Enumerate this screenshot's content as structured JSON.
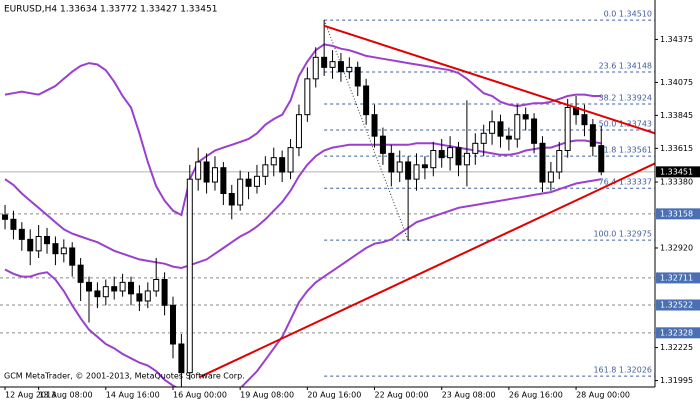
{
  "chart_data": {
    "type": "candlestick",
    "title": "EURUSD,H4 1.33634 1.33772 1.33427 1.33451",
    "footer": "GCM MetaTrader, © 2001-2013, MetaQuotes Software Corp.",
    "bull_color": "#ffffff",
    "bear_color": "#000000",
    "open": [
      1.3315,
      1.3312,
      1.3305,
      1.3298,
      1.329,
      1.33,
      1.3295,
      1.3288,
      1.3292,
      1.328,
      1.3268,
      1.3262,
      1.3258,
      1.3265,
      1.3262,
      1.3268,
      1.326,
      1.3255,
      1.3262,
      1.327,
      1.3252,
      1.3225,
      1.3205,
      1.334,
      1.3352,
      1.3338,
      1.3348,
      1.333,
      1.3322,
      1.334,
      1.3335,
      1.3342,
      1.335,
      1.3355,
      1.3345,
      1.3362,
      1.3385,
      1.341,
      1.3425,
      1.3418,
      1.3422,
      1.3415,
      1.3418,
      1.3405,
      1.3385,
      1.337,
      1.3358,
      1.3345,
      1.3352,
      1.334,
      1.335,
      1.3348,
      1.336,
      1.3355,
      1.3362,
      1.335,
      1.3358,
      1.3365,
      1.3372,
      1.338,
      1.337,
      1.3368,
      1.3385,
      1.3382,
      1.3365,
      1.3338,
      1.3345,
      1.336,
      1.339,
      1.3385,
      1.3378,
      1.33634
    ],
    "high": [
      1.3322,
      1.3318,
      1.331,
      1.3305,
      1.3308,
      1.3306,
      1.33,
      1.3298,
      1.3296,
      1.3285,
      1.3272,
      1.3268,
      1.327,
      1.3272,
      1.3274,
      1.3272,
      1.3266,
      1.3268,
      1.3285,
      1.3275,
      1.3258,
      1.3232,
      1.335,
      1.3362,
      1.3358,
      1.3356,
      1.3352,
      1.3336,
      1.3346,
      1.3345,
      1.335,
      1.3356,
      1.3362,
      1.336,
      1.3368,
      1.3392,
      1.3418,
      1.3432,
      1.3451,
      1.343,
      1.3428,
      1.3425,
      1.3422,
      1.341,
      1.3392,
      1.3376,
      1.3364,
      1.336,
      1.3356,
      1.3358,
      1.3356,
      1.3366,
      1.3368,
      1.337,
      1.3366,
      1.3395,
      1.3372,
      1.3378,
      1.3388,
      1.3385,
      1.3376,
      1.3392,
      1.339,
      1.3386,
      1.337,
      1.3352,
      1.3366,
      1.3396,
      1.3398,
      1.3392,
      1.3382,
      1.33772
    ],
    "low": [
      1.3305,
      1.3298,
      1.329,
      1.328,
      1.3285,
      1.3288,
      1.328,
      1.3282,
      1.3272,
      1.3255,
      1.324,
      1.325,
      1.3252,
      1.3256,
      1.3258,
      1.3252,
      1.3248,
      1.325,
      1.3258,
      1.3245,
      1.3215,
      1.319,
      1.32,
      1.3332,
      1.333,
      1.3332,
      1.3322,
      1.3312,
      1.3318,
      1.3326,
      1.333,
      1.3336,
      1.3342,
      1.3338,
      1.334,
      1.3356,
      1.338,
      1.3404,
      1.3412,
      1.341,
      1.3408,
      1.341,
      1.3398,
      1.3378,
      1.3362,
      1.335,
      1.3335,
      1.3338,
      1.3297,
      1.3332,
      1.334,
      1.3342,
      1.3348,
      1.3346,
      1.3342,
      1.3335,
      1.335,
      1.3356,
      1.3364,
      1.3362,
      1.336,
      1.3362,
      1.3374,
      1.3358,
      1.3331,
      1.3332,
      1.334,
      1.3355,
      1.3378,
      1.337,
      1.3356,
      1.33427
    ],
    "close": [
      1.3312,
      1.3305,
      1.3298,
      1.329,
      1.33,
      1.3295,
      1.3288,
      1.3292,
      1.328,
      1.3268,
      1.3262,
      1.3258,
      1.3265,
      1.3262,
      1.3268,
      1.326,
      1.3255,
      1.3262,
      1.327,
      1.3252,
      1.3225,
      1.3205,
      1.334,
      1.3352,
      1.3338,
      1.3348,
      1.333,
      1.3322,
      1.334,
      1.3335,
      1.3342,
      1.335,
      1.3355,
      1.3345,
      1.3362,
      1.3385,
      1.341,
      1.3425,
      1.3418,
      1.3422,
      1.3415,
      1.3418,
      1.3405,
      1.3385,
      1.337,
      1.3358,
      1.3345,
      1.3352,
      1.334,
      1.335,
      1.3348,
      1.336,
      1.3355,
      1.3362,
      1.335,
      1.3358,
      1.3365,
      1.3372,
      1.338,
      1.337,
      1.3368,
      1.3385,
      1.3382,
      1.3365,
      1.3338,
      1.3345,
      1.336,
      1.339,
      1.3385,
      1.3378,
      1.3363,
      1.33451
    ],
    "bands": {
      "color": "#9b3fcf",
      "upper": [
        1.3399,
        1.34,
        1.3401,
        1.34,
        1.3399,
        1.3402,
        1.3405,
        1.341,
        1.3415,
        1.3419,
        1.3421,
        1.342,
        1.3416,
        1.3408,
        1.3398,
        1.339,
        1.3372,
        1.3352,
        1.3335,
        1.3325,
        1.3318,
        1.3315,
        1.334,
        1.3352,
        1.3356,
        1.336,
        1.3362,
        1.3364,
        1.3366,
        1.3368,
        1.3372,
        1.3378,
        1.3382,
        1.3385,
        1.3395,
        1.3412,
        1.3422,
        1.343,
        1.3434,
        1.3433,
        1.3431,
        1.343,
        1.3428,
        1.3426,
        1.3425,
        1.3424,
        1.3423,
        1.3422,
        1.3421,
        1.342,
        1.3419,
        1.3418,
        1.3417,
        1.3416,
        1.3414,
        1.341,
        1.3405,
        1.34,
        1.3398,
        1.3394,
        1.3392,
        1.3391,
        1.3392,
        1.3393,
        1.3393,
        1.3394,
        1.3396,
        1.3398,
        1.3399,
        1.3399,
        1.3398,
        1.3398
      ],
      "middle": [
        1.334,
        1.3336,
        1.333,
        1.3325,
        1.332,
        1.3315,
        1.331,
        1.3305,
        1.3302,
        1.33,
        1.3298,
        1.3296,
        1.3293,
        1.329,
        1.3288,
        1.3286,
        1.3284,
        1.3283,
        1.3282,
        1.3281,
        1.3279,
        1.3278,
        1.328,
        1.3282,
        1.3284,
        1.3288,
        1.3292,
        1.3296,
        1.33,
        1.3303,
        1.3307,
        1.3312,
        1.3318,
        1.3324,
        1.3332,
        1.3342,
        1.335,
        1.3356,
        1.336,
        1.3362,
        1.3363,
        1.3364,
        1.3364,
        1.3364,
        1.3364,
        1.3364,
        1.3364,
        1.3364,
        1.3364,
        1.3365,
        1.3365,
        1.3365,
        1.3364,
        1.3363,
        1.3362,
        1.3361,
        1.336,
        1.3359,
        1.3358,
        1.3357,
        1.3357,
        1.3358,
        1.336,
        1.3361,
        1.3362,
        1.3362,
        1.3364,
        1.3366,
        1.3367,
        1.3367,
        1.3366,
        1.3365
      ],
      "lower": [
        1.3277,
        1.3274,
        1.3272,
        1.3272,
        1.3274,
        1.3275,
        1.327,
        1.3262,
        1.3252,
        1.3243,
        1.3235,
        1.323,
        1.3225,
        1.3222,
        1.3218,
        1.3215,
        1.3212,
        1.321,
        1.3206,
        1.32,
        1.3196,
        1.3193,
        1.319,
        1.3186,
        1.3184,
        1.3183,
        1.3184,
        1.3188,
        1.3194,
        1.32,
        1.3206,
        1.3214,
        1.3222,
        1.323,
        1.3242,
        1.3254,
        1.3262,
        1.3268,
        1.3272,
        1.3276,
        1.328,
        1.3284,
        1.3288,
        1.3292,
        1.3295,
        1.3296,
        1.3298,
        1.3302,
        1.3306,
        1.331,
        1.3312,
        1.3314,
        1.3316,
        1.3318,
        1.332,
        1.3321,
        1.3322,
        1.3323,
        1.3324,
        1.3325,
        1.3326,
        1.3327,
        1.3328,
        1.3329,
        1.333,
        1.3331,
        1.3333,
        1.3335,
        1.3337,
        1.3338,
        1.3339,
        1.334
      ]
    },
    "trendlines": [
      {
        "color": "#e00000",
        "x": [
          38,
          77.4
        ],
        "values": [
          1.3447,
          1.3372
        ]
      },
      {
        "color": "#e00000",
        "x": [
          23.2,
          77.4
        ],
        "values": [
          1.3202,
          1.3351
        ]
      }
    ],
    "fib": {
      "color": "#3f5f9f",
      "x": [
        38,
        48
      ],
      "values": [
        1.3451,
        1.32975
      ],
      "levels": [
        {
          "value": 1.3451,
          "label": "0.0 1.34510"
        },
        {
          "value": 1.34148,
          "label": "23.6 1.34148"
        },
        {
          "value": 1.33924,
          "label": "38.2 1.33924"
        },
        {
          "value": 1.33743,
          "label": "50.0 1.33743"
        },
        {
          "value": 1.33561,
          "label": "61.8 1.33561"
        },
        {
          "value": 1.33337,
          "label": "76.4 1.33337"
        },
        {
          "value": 1.32975,
          "label": "100.0 1.32975"
        },
        {
          "value": 1.32026,
          "label": "161.8 1.32026"
        }
      ]
    },
    "levels": [
      1.33158,
      1.32711,
      1.32522,
      1.32328
    ],
    "level_color": "#4a6fb5",
    "current": 1.33451,
    "ylim": [
      1.3195,
      1.3465
    ],
    "yticks": [
      1.34375,
      1.34075,
      1.33845,
      1.33615,
      {
        "value": 1.3338,
        "label": "1.33380"
      },
      {
        "value": 1.3292,
        "label": "1.32920"
      },
      1.32225,
      1.31995
    ],
    "xlim": [
      -0.6,
      77.4
    ],
    "xticks": [
      {
        "value": 0,
        "label": "12 Aug 2013"
      },
      {
        "value": 4,
        "label": "13 Aug 08:00"
      },
      {
        "value": 12,
        "label": "14 Aug 16:00"
      },
      {
        "value": 20,
        "label": "16 Aug 00:00"
      },
      {
        "value": 28,
        "label": "19 Aug 08:00"
      },
      {
        "value": 36,
        "label": "20 Aug 16:00"
      },
      {
        "value": 44,
        "label": "22 Aug 00:00"
      },
      {
        "value": 52,
        "label": "23 Aug 08:00"
      },
      {
        "value": 60,
        "label": "26 Aug 16:00"
      },
      {
        "value": 68,
        "label": "28 Aug 00:00"
      }
    ]
  }
}
